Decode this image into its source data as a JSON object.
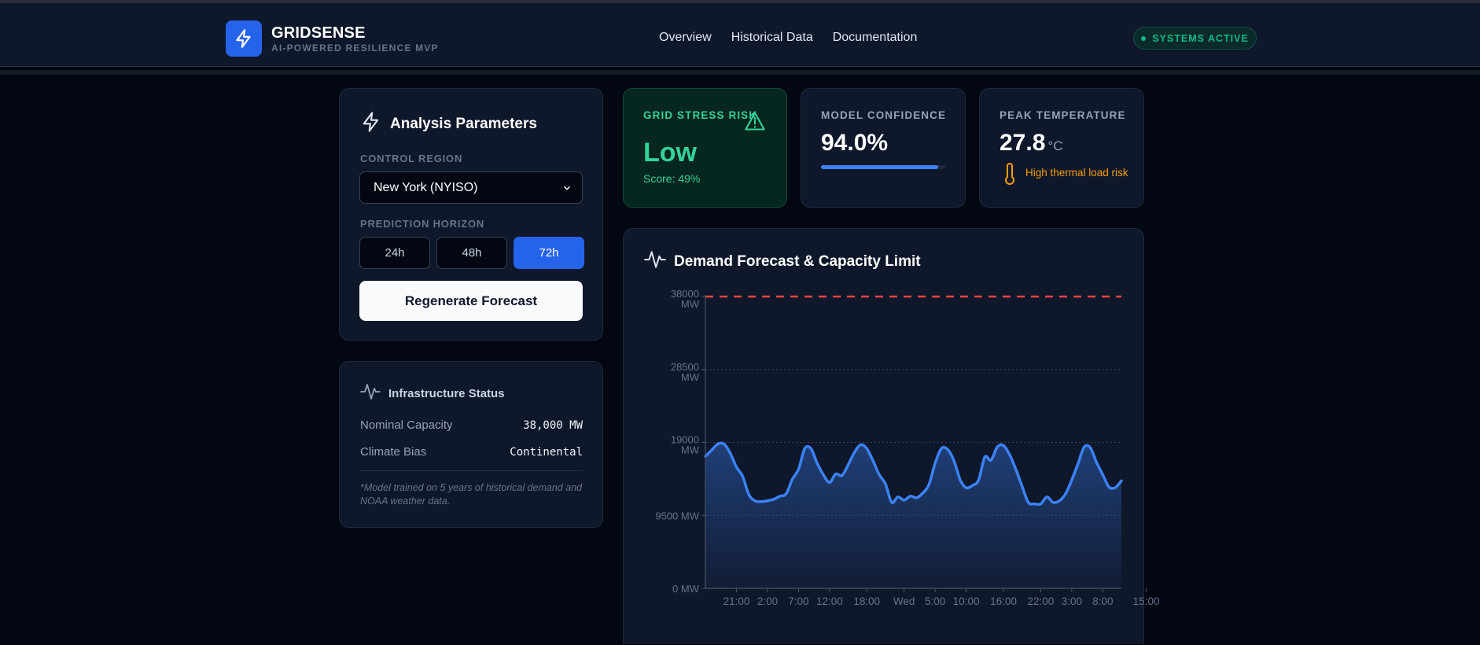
{
  "brand": {
    "name": "GRIDSENSE",
    "tagline": "AI-POWERED RESILIENCE MVP"
  },
  "nav": [
    "Overview",
    "Historical Data",
    "Documentation"
  ],
  "status": {
    "label": "SYSTEMS ACTIVE",
    "color": "#10b981"
  },
  "params": {
    "title": "Analysis Parameters",
    "region_label": "CONTROL REGION",
    "region_value": "New York (NYISO)",
    "horizon_label": "PREDICTION HORIZON",
    "horizons": [
      "24h",
      "48h",
      "72h"
    ],
    "selected_horizon": "72h",
    "regenerate_label": "Regenerate Forecast"
  },
  "infra": {
    "title": "Infrastructure Status",
    "rows": [
      {
        "key": "Nominal Capacity",
        "value": "38,000 MW"
      },
      {
        "key": "Climate Bias",
        "value": "Continental"
      }
    ],
    "note": "*Model trained on 5 years of historical demand and NOAA weather data."
  },
  "stats": {
    "risk": {
      "label": "GRID STRESS RISK",
      "value": "Low",
      "score": "Score: 49%",
      "color": "#34d399"
    },
    "confidence": {
      "label": "MODEL CONFIDENCE",
      "value": "94.0%",
      "fraction": 0.94
    },
    "temperature": {
      "label": "PEAK TEMPERATURE",
      "value": "27.8",
      "unit": "°C",
      "note": "High thermal load risk",
      "note_color": "#f59e0b"
    }
  },
  "chart_card": {
    "title": "Demand Forecast & Capacity Limit"
  },
  "chart_data": {
    "type": "area",
    "title": "Demand Forecast & Capacity Limit",
    "xlabel": "",
    "ylabel": "",
    "ylim": [
      0,
      38000
    ],
    "yticks": [
      {
        "value": 38000,
        "label": [
          "38000",
          "MW"
        ]
      },
      {
        "value": 28500,
        "label": [
          "28500",
          "MW"
        ]
      },
      {
        "value": 19000,
        "label": [
          "19000",
          "MW"
        ]
      },
      {
        "value": 9500,
        "label": [
          "9500 MW"
        ]
      },
      {
        "value": 0,
        "label": [
          "0 MW"
        ]
      }
    ],
    "xticks": [
      {
        "i": 5,
        "label": "21:00"
      },
      {
        "i": 10,
        "label": "2:00"
      },
      {
        "i": 15,
        "label": "7:00"
      },
      {
        "i": 20,
        "label": "12:00"
      },
      {
        "i": 26,
        "label": "18:00"
      },
      {
        "i": 32,
        "label": "Wed"
      },
      {
        "i": 37,
        "label": "5:00"
      },
      {
        "i": 42,
        "label": "10:00"
      },
      {
        "i": 48,
        "label": "16:00"
      },
      {
        "i": 54,
        "label": "22:00"
      },
      {
        "i": 59,
        "label": "3:00"
      },
      {
        "i": 64,
        "label": "8:00"
      },
      {
        "i": 71,
        "label": "15:00"
      }
    ],
    "capacity_limit": 38000,
    "capacity_color": "#ef4444",
    "series": [
      {
        "color": "#3b82f6",
        "values": [
          17200,
          18000,
          18800,
          18800,
          17600,
          15800,
          14600,
          12200,
          11400,
          11300,
          11400,
          11600,
          12000,
          12300,
          14200,
          15500,
          18200,
          18200,
          16300,
          14800,
          13800,
          14900,
          14700,
          16100,
          17700,
          18700,
          18200,
          16600,
          14800,
          13600,
          11200,
          11900,
          11500,
          12000,
          11800,
          12400,
          13500,
          16300,
          18200,
          18100,
          16700,
          14200,
          13100,
          13400,
          14100,
          17100,
          16700,
          18400,
          18600,
          17400,
          15500,
          13300,
          11200,
          11000,
          11000,
          11900,
          11200,
          11400,
          12300,
          14100,
          16200,
          18400,
          18300,
          16400,
          14800,
          13200,
          13100,
          14000
        ]
      }
    ]
  }
}
